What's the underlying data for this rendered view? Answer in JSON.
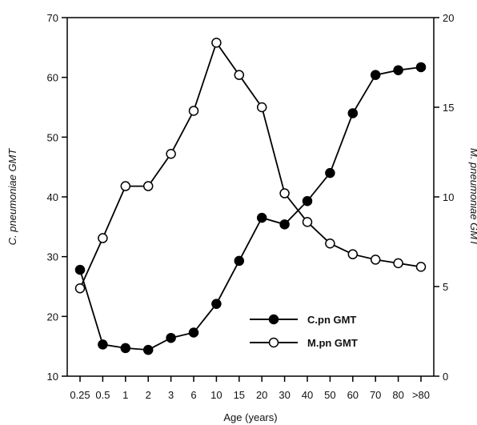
{
  "chart_data": {
    "type": "line",
    "title": "",
    "xlabel": "Age (years)",
    "ylabel_left": "C. pneumoniae GMT",
    "ylabel_right": "M. pneumoniae GMT",
    "categories": [
      "0.25",
      "0.5",
      "1",
      "2",
      "3",
      "6",
      "10",
      "15",
      "20",
      "30",
      "40",
      "50",
      "60",
      "70",
      "80",
      ">80"
    ],
    "ylim_left": [
      10,
      70
    ],
    "yticks_left": [
      10,
      20,
      30,
      40,
      50,
      60,
      70
    ],
    "ylim_right": [
      0,
      20
    ],
    "yticks_right": [
      0,
      5,
      10,
      15,
      20
    ],
    "grid": false,
    "legend_position": "lower-right",
    "series": [
      {
        "name": "C.pn GMT",
        "axis": "left",
        "marker": "filled-circle",
        "values": [
          27.8,
          15.3,
          14.7,
          14.4,
          16.4,
          17.3,
          22.1,
          29.3,
          36.5,
          35.4,
          39.3,
          44.0,
          54.0,
          60.4,
          61.2,
          61.7
        ]
      },
      {
        "name": "M.pn GMT",
        "axis": "right",
        "marker": "open-circle",
        "values": [
          4.9,
          7.7,
          10.6,
          10.6,
          12.4,
          14.8,
          18.6,
          16.8,
          15.0,
          10.2,
          8.6,
          7.4,
          6.8,
          6.5,
          6.3,
          6.1
        ]
      }
    ]
  }
}
